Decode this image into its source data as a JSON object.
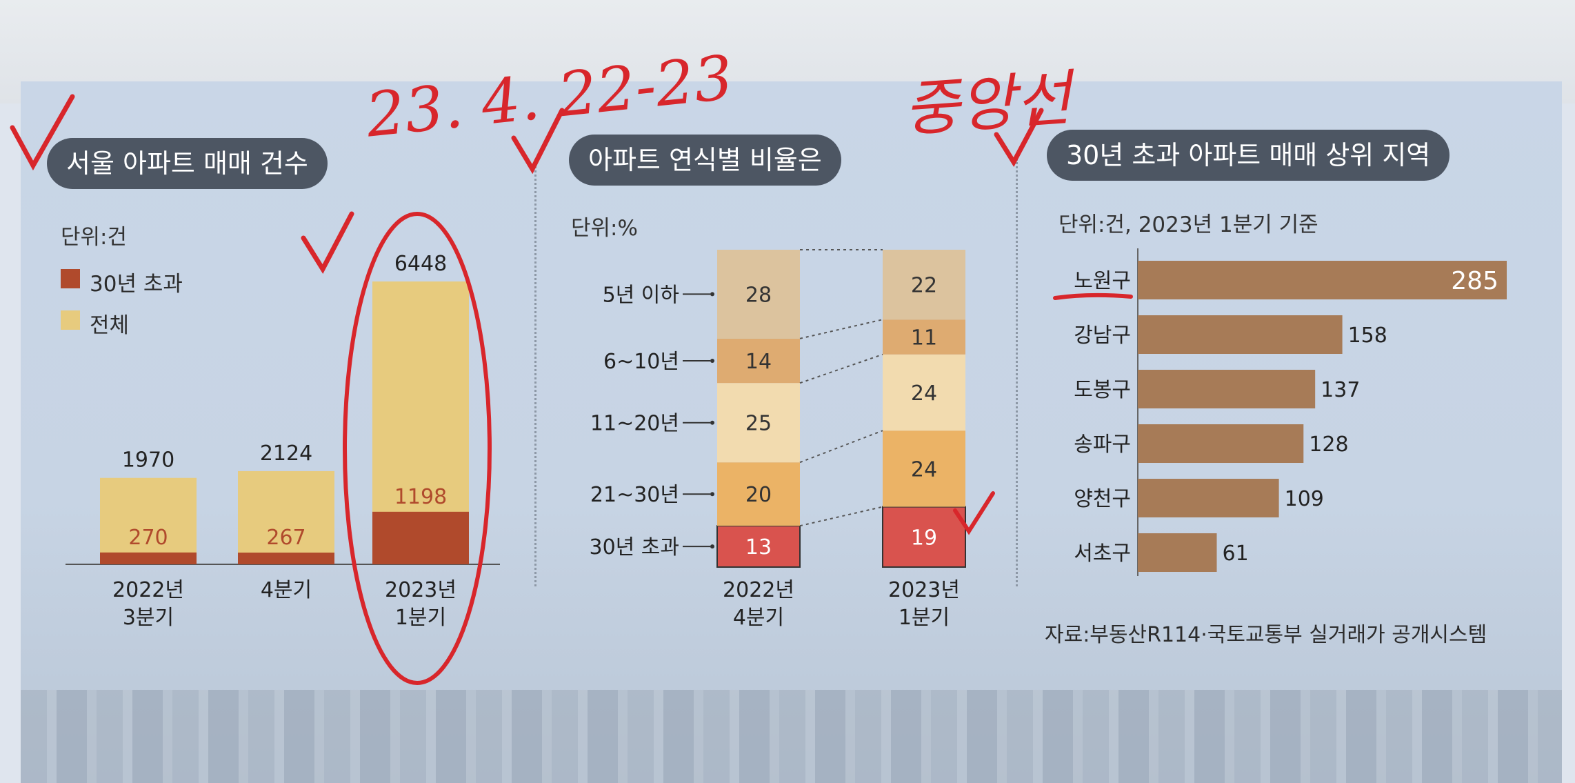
{
  "panels": {
    "left": {
      "title": "서울 아파트 매매 건수",
      "unit": "단위:건"
    },
    "middle": {
      "title": "아파트 연식별 비율은",
      "unit": "단위:%"
    },
    "right": {
      "title": "30년 초과 아파트 매매 상위 지역",
      "unit": "단위:건, 2023년 1분기 기준"
    }
  },
  "annotations": {
    "date": "23. 4. 22-23",
    "paper": "중앙선"
  },
  "source": "자료:부동산R114·국토교통부 실거래가 공개시스템",
  "colors": {
    "over30": "#b04a2c",
    "total": "#e7cb7e",
    "bar_region": "#a77b57",
    "title_bg": "#4d5663",
    "ink": "#d8262b"
  },
  "chart_data": [
    {
      "type": "bar",
      "title": "서울 아파트 매매 건수",
      "unit": "단위:건",
      "categories": [
        "2022년 3분기",
        "4분기",
        "2023년 1분기"
      ],
      "category_lines": [
        [
          "2022년",
          "3분기"
        ],
        [
          "4분기"
        ],
        [
          "2023년",
          "1분기"
        ]
      ],
      "series": [
        {
          "name": "30년 초과",
          "values": [
            270,
            267,
            1198
          ],
          "color": "#b04a2c"
        },
        {
          "name": "전체",
          "values": [
            1970,
            2124,
            6448
          ],
          "color": "#e7cb7e"
        }
      ],
      "legend": "top-left",
      "grid": false
    },
    {
      "type": "bar",
      "stacked": true,
      "title": "아파트 연식별 비율은",
      "unit": "단위:%",
      "categories": [
        "2022년 4분기",
        "2023년 1분기"
      ],
      "category_lines": [
        [
          "2022년",
          "4분기"
        ],
        [
          "2023년",
          "1분기"
        ]
      ],
      "series": [
        {
          "name": "30년 초과",
          "values": [
            13,
            19
          ],
          "color": "#d9534e"
        },
        {
          "name": "21~30년",
          "values": [
            20,
            24
          ],
          "color": "#ebb366"
        },
        {
          "name": "11~20년",
          "values": [
            25,
            24
          ],
          "color": "#f2dbaf"
        },
        {
          "name": "6~10년",
          "values": [
            14,
            11
          ],
          "color": "#deab71"
        },
        {
          "name": "5년 이하",
          "values": [
            28,
            22
          ],
          "color": "#dcc39e"
        }
      ],
      "grid": false
    },
    {
      "type": "bar",
      "orientation": "horizontal",
      "title": "30년 초과 아파트 매매 상위 지역",
      "unit": "단위:건, 2023년 1분기 기준",
      "categories": [
        "노원구",
        "강남구",
        "도봉구",
        "송파구",
        "양천구",
        "서초구"
      ],
      "values": [
        285,
        158,
        137,
        128,
        109,
        61
      ],
      "color": "#a77b57",
      "grid": false
    }
  ]
}
